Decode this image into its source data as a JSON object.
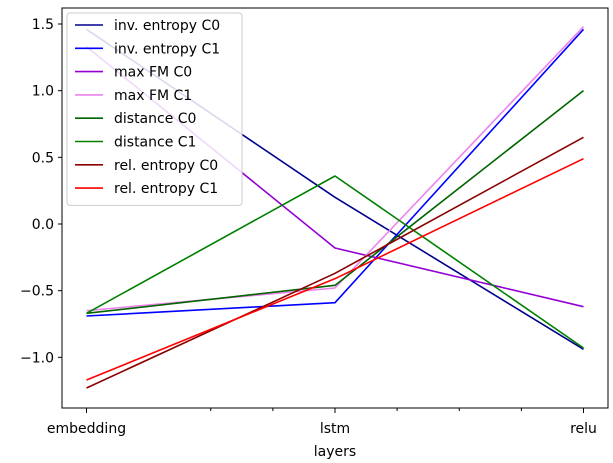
{
  "chart_data": {
    "type": "line",
    "categories": [
      "embedding",
      "lstm",
      "relu"
    ],
    "xlabel": "layers",
    "ylabel": "",
    "title": "",
    "ylim": [
      -1.38,
      1.62
    ],
    "yticks": [
      -1.0,
      -0.5,
      0.0,
      0.5,
      1.0,
      1.5
    ],
    "ytick_labels": [
      "−1.0",
      "−0.5",
      "0.0",
      "0.5",
      "1.0",
      "1.5"
    ],
    "minor_x_ticks": [
      0.5,
      0.75,
      1.25,
      1.5,
      1.75
    ],
    "grid": false,
    "legend_position": "top-left",
    "series": [
      {
        "name": "inv. entropy C0",
        "color": "#00008b",
        "values": [
          1.46,
          0.2,
          -0.94
        ]
      },
      {
        "name": "inv. entropy C1",
        "color": "#0000ff",
        "values": [
          -0.69,
          -0.59,
          1.46
        ]
      },
      {
        "name": "max FM C0",
        "color": "#9400d3",
        "values": [
          1.33,
          -0.18,
          -0.62
        ]
      },
      {
        "name": "max FM C1",
        "color": "#ee82ee",
        "values": [
          -0.65,
          -0.48,
          1.48
        ]
      },
      {
        "name": "distance C0",
        "color": "#006400",
        "values": [
          -0.67,
          -0.46,
          1.0
        ]
      },
      {
        "name": "distance C1",
        "color": "#008000",
        "values": [
          -0.67,
          0.36,
          -0.93
        ]
      },
      {
        "name": "rel. entropy C0",
        "color": "#8b0000",
        "values": [
          -1.23,
          -0.37,
          0.65
        ]
      },
      {
        "name": "rel. entropy C1",
        "color": "#ff0000",
        "values": [
          -1.17,
          -0.41,
          0.49
        ]
      }
    ]
  }
}
